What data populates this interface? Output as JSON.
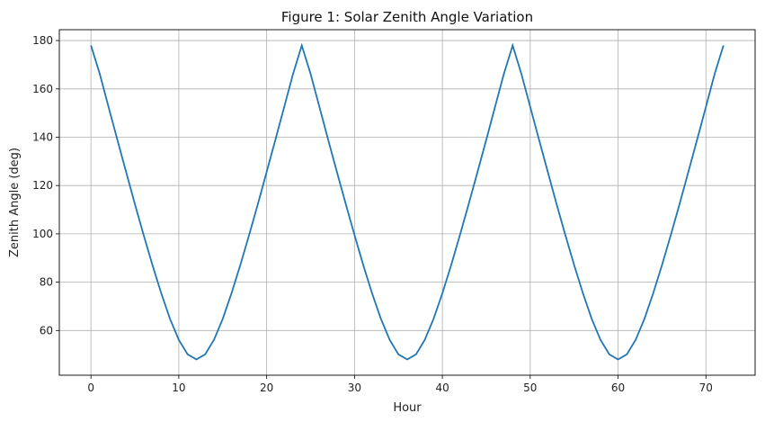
{
  "chart_data": {
    "type": "line",
    "title": "Figure 1: Solar Zenith Angle Variation",
    "xlabel": "Hour",
    "ylabel": "Zenith Angle (deg)",
    "xlim": [
      -3.6,
      75.6
    ],
    "ylim": [
      41.5,
      184.5
    ],
    "xticks": [
      0,
      10,
      20,
      30,
      40,
      50,
      60,
      70
    ],
    "yticks": [
      60,
      80,
      100,
      120,
      140,
      160,
      180
    ],
    "grid": true,
    "series": [
      {
        "name": "Zenith Angle",
        "color": "#1f77b4",
        "x": [
          0,
          1,
          2,
          3,
          4,
          5,
          6,
          7,
          8,
          9,
          10,
          11,
          12,
          13,
          14,
          15,
          16,
          17,
          18,
          19,
          20,
          21,
          22,
          23,
          24,
          25,
          26,
          27,
          28,
          29,
          30,
          31,
          32,
          33,
          34,
          35,
          36,
          37,
          38,
          39,
          40,
          41,
          42,
          43,
          44,
          45,
          46,
          47,
          48,
          49,
          50,
          51,
          52,
          53,
          54,
          55,
          56,
          57,
          58,
          59,
          60,
          61,
          62,
          63,
          64,
          65,
          66,
          67,
          68,
          69,
          70,
          71,
          72
        ],
        "y": [
          178.0,
          166.2,
          152.57,
          139.03,
          125.61,
          112.4,
          99.5,
          87.09,
          75.4,
          64.86,
          56.12,
          50.15,
          48.0,
          50.15,
          56.12,
          64.86,
          75.4,
          87.09,
          99.5,
          112.4,
          125.61,
          139.03,
          152.57,
          166.2,
          178.0,
          166.2,
          152.57,
          139.03,
          125.61,
          112.4,
          99.5,
          87.09,
          75.4,
          64.86,
          56.12,
          50.15,
          48.0,
          50.15,
          56.12,
          64.86,
          75.4,
          87.09,
          99.5,
          112.4,
          125.61,
          139.03,
          152.57,
          166.2,
          178.0,
          166.2,
          152.57,
          139.03,
          125.61,
          112.4,
          99.5,
          87.09,
          75.4,
          64.86,
          56.12,
          50.15,
          48.0,
          50.15,
          56.12,
          64.86,
          75.4,
          87.09,
          99.5,
          112.4,
          125.61,
          139.03,
          152.57,
          166.2,
          178.0
        ]
      }
    ]
  }
}
